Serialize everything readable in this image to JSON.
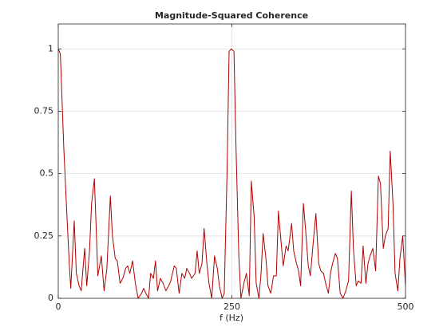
{
  "chart_data": {
    "type": "line",
    "title": "Magnitude-Squared Coherence",
    "x_label": "f (Hz)",
    "color": "#b00000",
    "grid": true,
    "xlim": [
      0,
      500
    ],
    "xticks": [
      0,
      250,
      500
    ],
    "ylim": [
      0,
      1.1
    ],
    "yticks": [
      0,
      0.25,
      0.5,
      0.75,
      1
    ],
    "x": [
      0,
      3,
      8,
      13,
      16,
      18,
      23,
      26,
      30,
      33,
      38,
      41,
      45,
      48,
      52,
      55,
      57,
      62,
      66,
      70,
      75,
      78,
      82,
      85,
      89,
      93,
      97,
      100,
      103,
      107,
      111,
      115,
      120,
      123,
      126,
      130,
      133,
      137,
      140,
      143,
      147,
      151,
      155,
      159,
      162,
      167,
      170,
      174,
      178,
      182,
      185,
      189,
      192,
      197,
      200,
      203,
      207,
      210,
      214,
      217,
      221,
      225,
      229,
      232,
      236,
      239,
      243,
      246,
      249,
      253,
      256,
      260,
      263,
      268,
      271,
      275,
      278,
      282,
      285,
      289,
      292,
      295,
      299,
      302,
      306,
      310,
      314,
      317,
      321,
      324,
      328,
      331,
      336,
      339,
      343,
      346,
      349,
      353,
      356,
      360,
      363,
      367,
      371,
      375,
      378,
      382,
      385,
      389,
      392,
      395,
      399,
      402,
      406,
      410,
      414,
      418,
      422,
      425,
      429,
      432,
      436,
      439,
      443,
      446,
      449,
      453,
      457,
      461,
      464,
      468,
      471,
      475,
      478,
      482,
      485,
      489,
      492,
      496,
      500
    ],
    "values": [
      1.0,
      0.98,
      0.6,
      0.3,
      0.13,
      0.04,
      0.31,
      0.1,
      0.05,
      0.03,
      0.2,
      0.05,
      0.19,
      0.38,
      0.48,
      0.25,
      0.09,
      0.17,
      0.03,
      0.12,
      0.41,
      0.25,
      0.16,
      0.15,
      0.06,
      0.08,
      0.12,
      0.13,
      0.1,
      0.15,
      0.06,
      0.0,
      0.02,
      0.04,
      0.02,
      0.0,
      0.1,
      0.08,
      0.15,
      0.03,
      0.08,
      0.06,
      0.03,
      0.05,
      0.07,
      0.13,
      0.12,
      0.02,
      0.1,
      0.08,
      0.12,
      0.1,
      0.08,
      0.1,
      0.19,
      0.1,
      0.14,
      0.28,
      0.14,
      0.06,
      0.0,
      0.17,
      0.12,
      0.05,
      0.0,
      0.02,
      0.5,
      0.99,
      1.0,
      0.99,
      0.6,
      0.17,
      0.0,
      0.07,
      0.1,
      0.01,
      0.47,
      0.33,
      0.06,
      0.0,
      0.1,
      0.26,
      0.16,
      0.05,
      0.02,
      0.09,
      0.09,
      0.35,
      0.22,
      0.13,
      0.21,
      0.19,
      0.3,
      0.19,
      0.14,
      0.11,
      0.05,
      0.38,
      0.28,
      0.13,
      0.09,
      0.22,
      0.34,
      0.14,
      0.11,
      0.1,
      0.06,
      0.02,
      0.1,
      0.14,
      0.18,
      0.16,
      0.02,
      0.0,
      0.03,
      0.07,
      0.43,
      0.2,
      0.05,
      0.07,
      0.06,
      0.21,
      0.06,
      0.14,
      0.17,
      0.2,
      0.11,
      0.49,
      0.46,
      0.2,
      0.25,
      0.28,
      0.59,
      0.38,
      0.1,
      0.03,
      0.16,
      0.25,
      0.05
    ]
  }
}
